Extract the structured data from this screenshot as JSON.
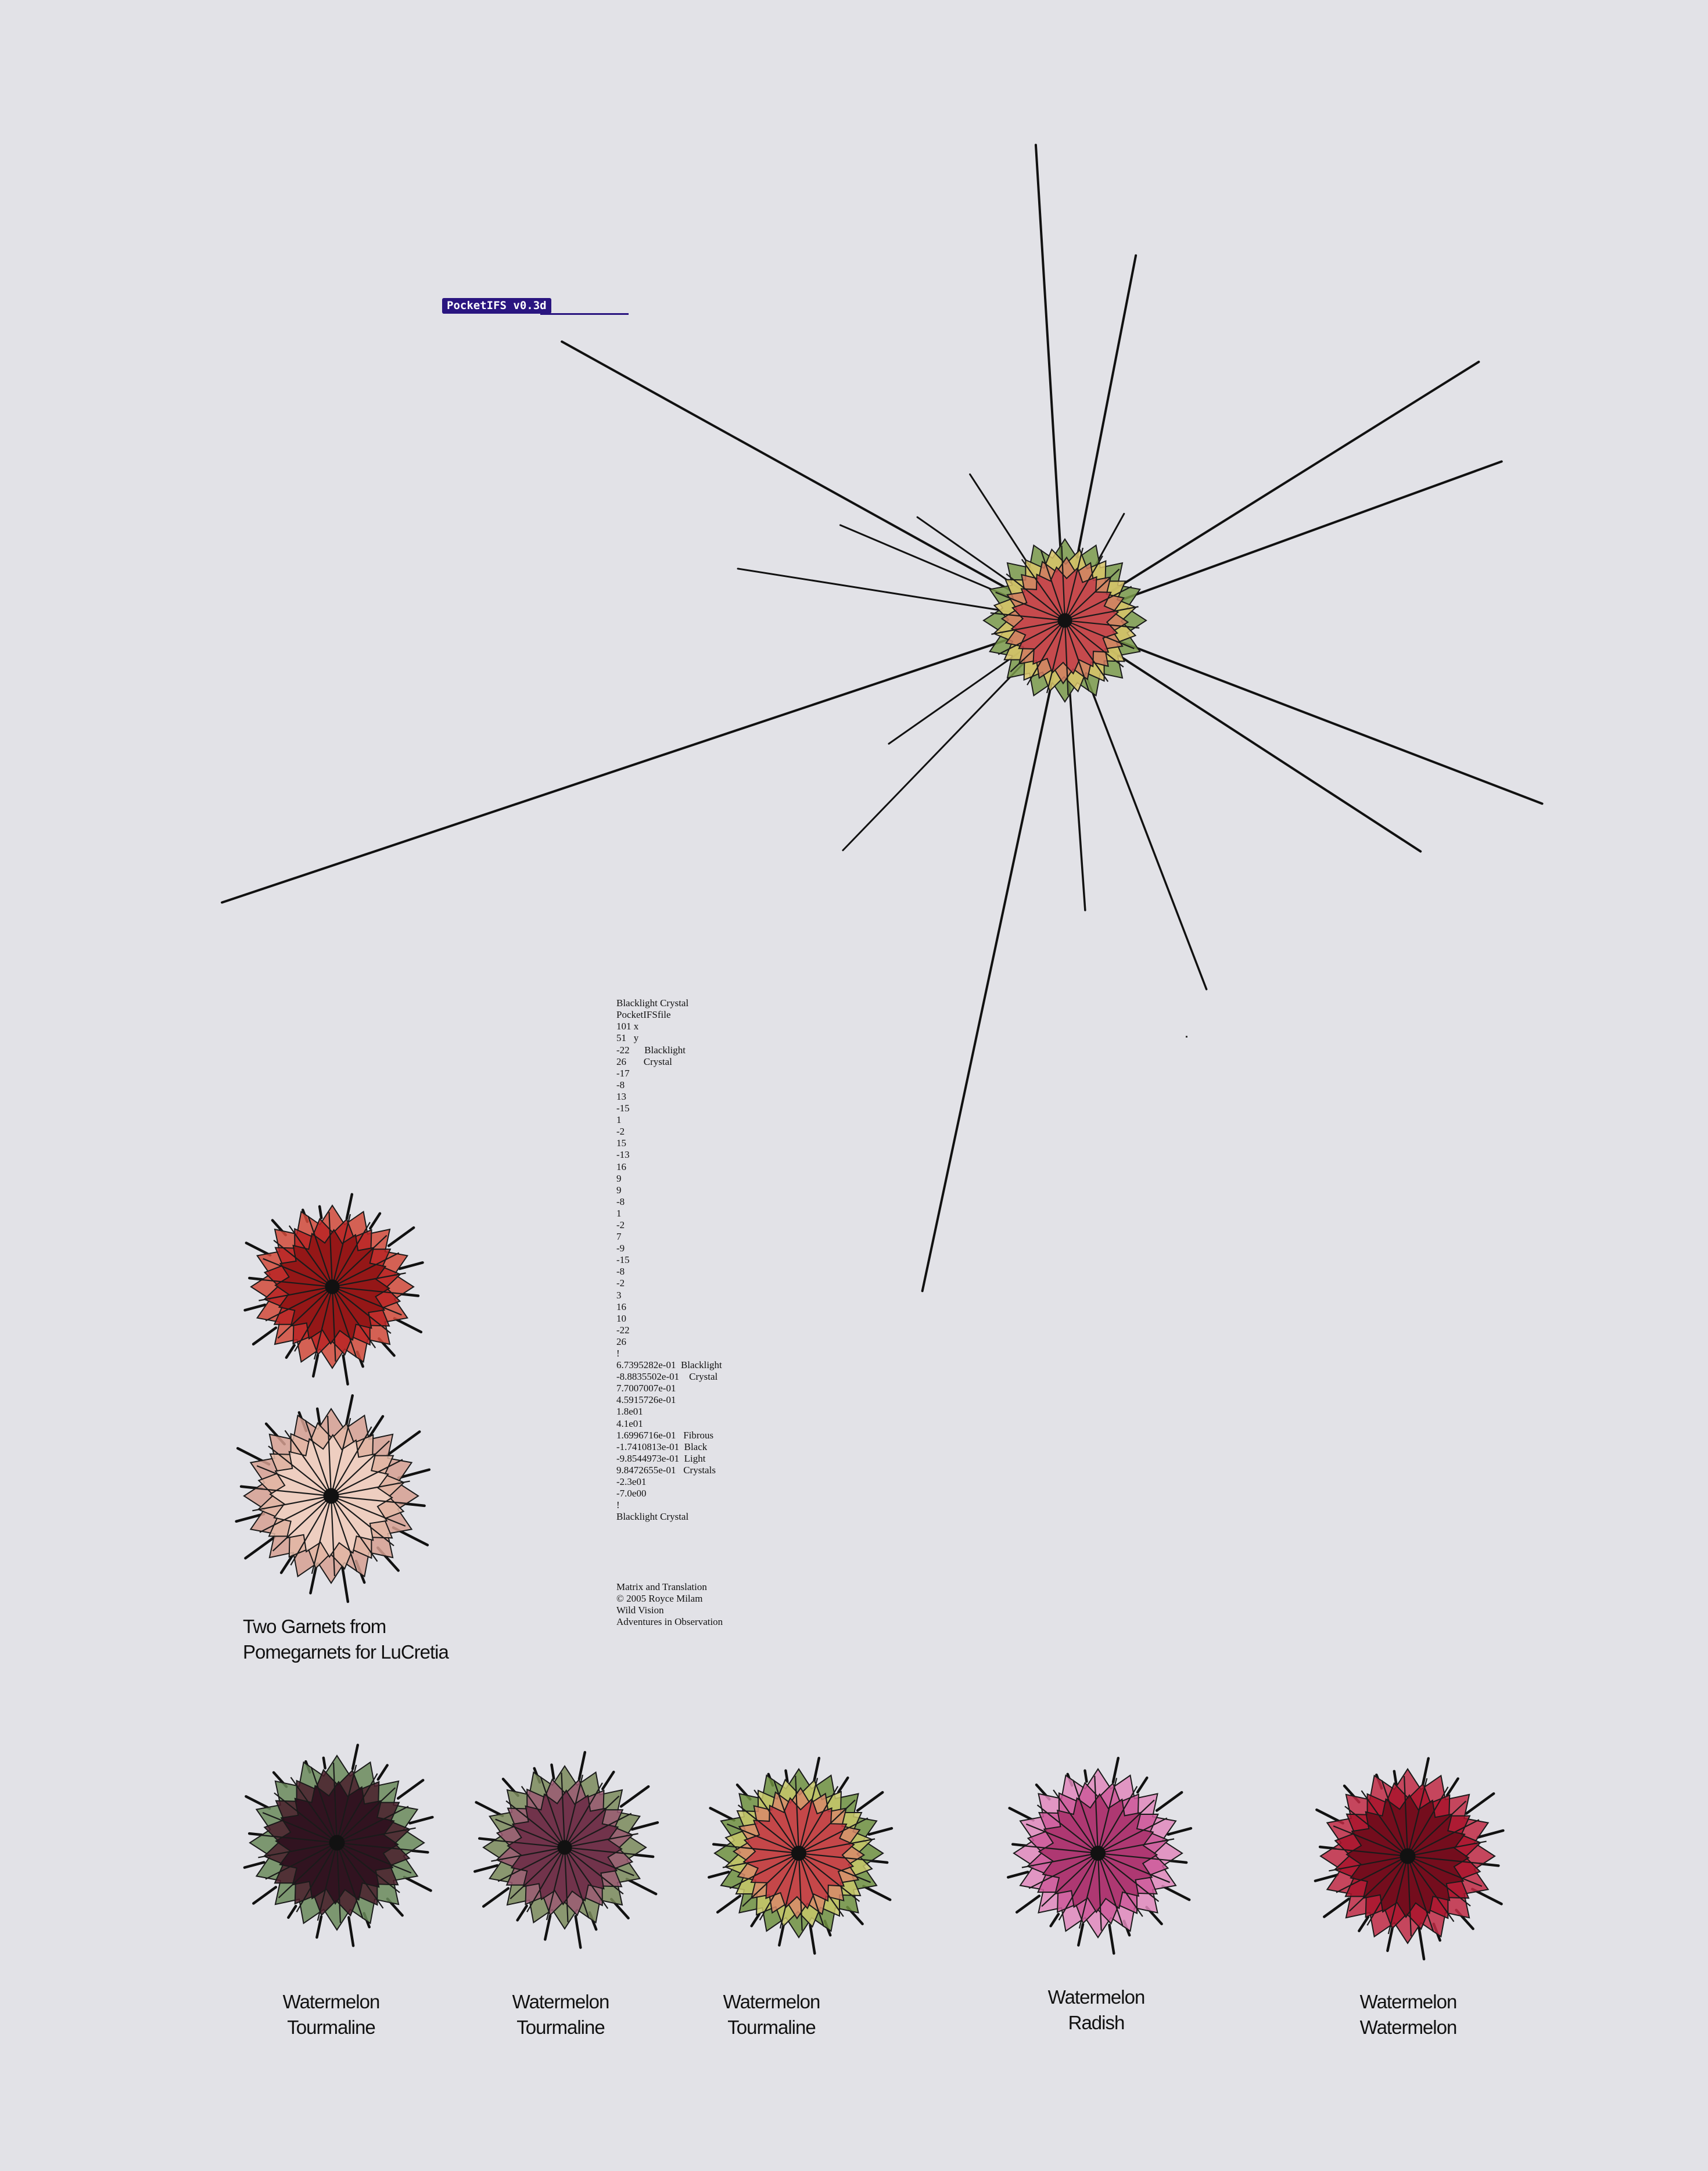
{
  "app": {
    "badge": "PocketIFS v0.3d"
  },
  "params": {
    "lines": [
      "Blacklight Crystal",
      "PocketIFSfile",
      "101 x",
      "51   y",
      "-22      Blacklight",
      "26       Crystal",
      "-17",
      "-8",
      "13",
      "-15",
      "1",
      "-2",
      "15",
      "-13",
      "16",
      "9",
      "9",
      "-8",
      "1",
      "-2",
      "7",
      "-9",
      "-15",
      "-8",
      "-2",
      "3",
      "16",
      "10",
      "-22",
      "26",
      "!",
      "6.7395282e-01  Blacklight",
      "-8.8835502e-01    Crystal",
      "7.7007007e-01",
      "4.5915726e-01",
      "1.8e01",
      "4.1e01",
      "1.6996716e-01   Fibrous",
      "-1.7410813e-01  Black",
      "-9.8544973e-01  Light",
      "9.8472655e-01   Crystals",
      "-2.3e01",
      "-7.0e00",
      "!",
      "Blacklight Crystal"
    ],
    "footer": [
      "Matrix and Translation",
      "© 2005 Royce Milam",
      "Wild Vision",
      "Adventures in Observation"
    ]
  },
  "captions": {
    "garnets_line1": "Two Garnets from",
    "garnets_line2": "Pomegarnets for LuCretia",
    "tourmaline_1": [
      "Watermelon",
      "Tourmaline"
    ],
    "tourmaline_2": [
      "Watermelon",
      "Tourmaline"
    ],
    "tourmaline_3": [
      "Watermelon",
      "Tourmaline"
    ],
    "radish": [
      "Watermelon",
      "Radish"
    ],
    "watermelon": [
      "Watermelon",
      "Watermelon"
    ]
  },
  "palette": {
    "background": "#e2e2e7",
    "badge": "#2a1580",
    "crystal_main": [
      "#c4404a",
      "#d07a60",
      "#d9c66a",
      "#7a9a4a"
    ],
    "garnet_red": [
      "#8e1414",
      "#b82424",
      "#d14a3a"
    ],
    "garnet_pink": [
      "#f0d2c4",
      "#e4b8a6",
      "#d6a092"
    ],
    "tourmaline_dark": [
      "#2c0e1c",
      "#4a1e2c",
      "#6a8a5a"
    ],
    "tourmaline_mauve": [
      "#6a2a44",
      "#9a5a72",
      "#7a8a5a"
    ],
    "tourmaline_bright": [
      "#c23a44",
      "#d88a6a",
      "#c8c86a",
      "#6e9040"
    ],
    "radish": [
      "#a8306a",
      "#cc5a9a",
      "#e088bc"
    ],
    "watermelon": [
      "#6a0a1a",
      "#a8142c",
      "#c02a44"
    ]
  },
  "icons": [
    "blacklight-crystal-fractal",
    "garnet-fractal",
    "tourmaline-fractal",
    "radish-fractal",
    "watermelon-fractal"
  ]
}
